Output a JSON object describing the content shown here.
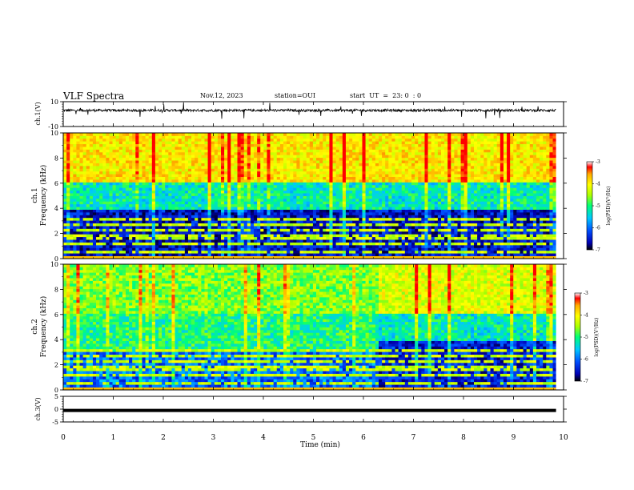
{
  "header": {
    "title": "VLF Spectra",
    "date": "Nov.12, 2023",
    "station": "station=OUI",
    "start": "start  UT  =  23: 0  : 0"
  },
  "chart_data": [
    {
      "type": "line",
      "panel": "ch1_waveform",
      "ylabel": "ch.1(V)",
      "ylim": [
        -10,
        10
      ],
      "yticks": [
        "10",
        "-10"
      ],
      "x_range_min": [
        0,
        10
      ],
      "values_note": "noise waveform centred near 3 V, amplitude roughly ±1 V with spikes"
    },
    {
      "type": "heatmap",
      "panel": "ch1_spectrogram",
      "ylabel": "ch.1\nFrequency (kHz)",
      "ylim": [
        0,
        10
      ],
      "yticks": [
        "0",
        "2",
        "4",
        "6",
        "8",
        "10"
      ],
      "data_x_max_min": 9.85,
      "colorbar": {
        "label": "log(PSD)(V²/Hz)",
        "range": [
          -7,
          -3
        ],
        "ticks": [
          "-3",
          "-4",
          "-5",
          "-6",
          "-7"
        ]
      },
      "bands_khz": [
        {
          "from": 0,
          "to": 4,
          "logpsd": -6.4
        },
        {
          "from": 4,
          "to": 6,
          "logpsd": -5.2
        },
        {
          "from": 6,
          "to": 10,
          "logpsd": -3.9
        }
      ]
    },
    {
      "type": "heatmap",
      "panel": "ch2_spectrogram",
      "ylabel": "ch.2\nFrequency (kHz)",
      "ylim": [
        0,
        10
      ],
      "yticks": [
        "0",
        "2",
        "4",
        "6",
        "8",
        "10"
      ],
      "data_x_max_min": 9.85,
      "colorbar": {
        "label": "log(PSD)(V²/Hz)",
        "range": [
          -7,
          -3
        ],
        "ticks": [
          "-3",
          "-4",
          "-5",
          "-6",
          "-7"
        ]
      },
      "regime_change_min": 6.3,
      "bands_khz_before": [
        {
          "from": 0,
          "to": 3,
          "logpsd": -5.9
        },
        {
          "from": 3,
          "to": 6,
          "logpsd": -5.0
        },
        {
          "from": 6,
          "to": 10,
          "logpsd": -4.6
        }
      ],
      "bands_khz_after": [
        {
          "from": 0,
          "to": 4,
          "logpsd": -6.3
        },
        {
          "from": 4,
          "to": 6,
          "logpsd": -5.2
        },
        {
          "from": 6,
          "to": 10,
          "logpsd": -4.2
        }
      ]
    },
    {
      "type": "line",
      "panel": "ch3_waveform",
      "ylabel": "ch.3(V)",
      "ylim": [
        -5,
        5
      ],
      "yticks": [
        "5",
        "0",
        "-5"
      ],
      "constant_value": -0.5
    }
  ],
  "xaxis": {
    "label": "Time (min)",
    "range": [
      0,
      10
    ],
    "ticks": [
      "0",
      "1",
      "2",
      "3",
      "4",
      "5",
      "6",
      "7",
      "8",
      "9",
      "10"
    ]
  },
  "colors": {
    "cmap": [
      "#000000",
      "#0000b4",
      "#0050ff",
      "#00c8ff",
      "#00ff78",
      "#aaff00",
      "#ffff00",
      "#ffaa00",
      "#ff0000"
    ]
  }
}
